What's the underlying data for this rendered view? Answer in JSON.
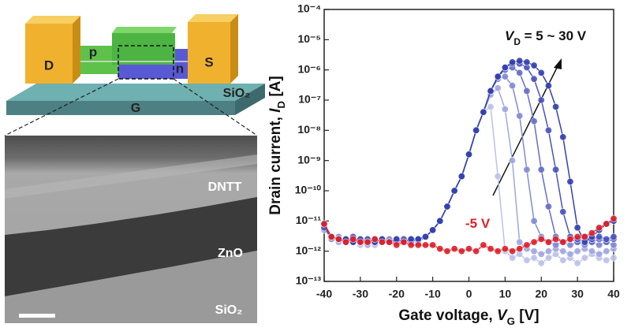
{
  "schematic": {
    "labels": [
      "D",
      "p",
      "n",
      "S",
      "SiO₂",
      "G"
    ]
  },
  "micrograph": {
    "labels": [
      "DNTT",
      "ZnO",
      "SiO₂"
    ]
  },
  "chart_data": {
    "type": "scatter",
    "x_label": [
      "Gate voltage, ",
      "V",
      "G",
      " [V]"
    ],
    "y_label": [
      "Drain current, ",
      "I",
      "D",
      " [A]"
    ],
    "annotations": [
      [
        "V",
        "D",
        " = 5 ~ 30 V"
      ],
      [
        "-5 V"
      ]
    ],
    "log_y": true,
    "xlim": [
      -40,
      40
    ],
    "xticks": [
      -40,
      -30,
      -20,
      -10,
      0,
      10,
      20,
      30,
      40
    ],
    "ylim": [
      1e-13,
      0.0001
    ],
    "yticks": [
      {
        "value": 1e-13,
        "label": "10⁻¹³"
      },
      {
        "value": 1e-12,
        "label": "10⁻¹²"
      },
      {
        "value": 1e-11,
        "label": "10⁻¹¹"
      },
      {
        "value": 1e-10,
        "label": "10⁻¹⁰"
      },
      {
        "value": 1e-09,
        "label": "10⁻⁹"
      },
      {
        "value": 1e-08,
        "label": "10⁻⁸"
      },
      {
        "value": 1e-07,
        "label": "10⁻⁷"
      },
      {
        "value": 1e-06,
        "label": "10⁻⁶"
      },
      {
        "value": 1e-05,
        "label": "10⁻⁵"
      },
      {
        "value": 0.0001,
        "label": "10⁻⁴"
      }
    ],
    "x": [
      -40,
      -38,
      -36,
      -34,
      -32,
      -30,
      -28,
      -26,
      -24,
      -22,
      -20,
      -18,
      -16,
      -14,
      -12,
      -10,
      -8,
      -6,
      -4,
      -2,
      0,
      2,
      4,
      6,
      8,
      10,
      12,
      14,
      16,
      18,
      20,
      22,
      24,
      26,
      28,
      30,
      32,
      34,
      36,
      38,
      40
    ],
    "series": [
      {
        "color": "#bcc1ea",
        "values": [
          6e-12,
          3e-12,
          2.5e-12,
          2e-12,
          2.5e-12,
          1.6e-12,
          2e-12,
          1.6e-12,
          2e-12,
          2.5e-12,
          2e-12,
          2.5e-12,
          2e-12,
          2.5e-12,
          3e-12,
          5e-12,
          1e-11,
          3e-11,
          1e-10,
          3e-10,
          1.6e-09,
          1e-08,
          4e-08,
          6e-08,
          3e-10,
          1e-12,
          6e-13,
          8e-13,
          5e-13,
          6e-13,
          4e-13,
          6e-13,
          8e-13,
          5e-13,
          6e-13,
          4e-13,
          6e-13,
          8e-13,
          6e-13,
          5e-13,
          6e-13
        ]
      },
      {
        "color": "#a0a7e1",
        "values": [
          5e-12,
          3e-12,
          2e-12,
          2.5e-12,
          2e-12,
          2e-12,
          1.6e-12,
          2e-12,
          2.5e-12,
          2e-12,
          2.5e-12,
          2e-12,
          2.5e-12,
          2e-12,
          3e-12,
          5e-12,
          1e-11,
          3e-11,
          1e-10,
          3e-10,
          1.6e-09,
          1e-08,
          4e-08,
          1.5e-07,
          2.5e-07,
          5e-08,
          1e-09,
          2e-12,
          1.2e-12,
          1e-12,
          8e-13,
          1e-12,
          1.2e-12,
          1e-12,
          8e-13,
          1e-12,
          1.2e-12,
          1e-12,
          8e-13,
          1e-12,
          1.2e-12
        ]
      },
      {
        "color": "#8189d6",
        "values": [
          6e-12,
          2.5e-12,
          3e-12,
          2e-12,
          2.5e-12,
          2e-12,
          2.5e-12,
          2e-12,
          2e-12,
          2.5e-12,
          2e-12,
          2e-12,
          2.5e-12,
          2e-12,
          3e-12,
          5e-12,
          1e-11,
          3e-11,
          1e-10,
          3e-10,
          1.6e-09,
          1e-08,
          4e-08,
          2e-07,
          5e-07,
          6e-07,
          3e-07,
          3e-08,
          5e-10,
          1e-11,
          3e-12,
          2e-12,
          1.6e-12,
          2e-12,
          1.6e-12,
          2e-12,
          1.6e-12,
          2e-12,
          1.6e-12,
          2e-12,
          1.6e-12
        ]
      },
      {
        "color": "#646dc9",
        "values": [
          7e-12,
          3e-12,
          2.5e-12,
          2.5e-12,
          2e-12,
          2e-12,
          2e-12,
          2.5e-12,
          2e-12,
          2e-12,
          2.5e-12,
          2e-12,
          2e-12,
          2.5e-12,
          3e-12,
          5e-12,
          1e-11,
          3e-11,
          1e-10,
          3e-10,
          1.6e-09,
          1e-08,
          4e-08,
          2e-07,
          6e-07,
          1e-06,
          1.2e-06,
          8e-07,
          2e-07,
          2e-08,
          5e-10,
          3e-11,
          3e-12,
          2e-12,
          2.5e-12,
          2e-12,
          2.5e-12,
          2e-12,
          2.5e-12,
          2e-12,
          2.5e-12
        ]
      },
      {
        "color": "#4a53bd",
        "values": [
          6e-12,
          3e-12,
          2.5e-12,
          2e-12,
          3e-12,
          2e-12,
          2.5e-12,
          2e-12,
          2.5e-12,
          2e-12,
          2e-12,
          2.5e-12,
          2e-12,
          2.5e-12,
          3e-12,
          5e-12,
          1e-11,
          3e-11,
          1e-10,
          3e-10,
          1.6e-09,
          1e-08,
          4e-08,
          2e-07,
          6e-07,
          1.2e-06,
          1.6e-06,
          1.6e-06,
          1.2e-06,
          5e-07,
          1e-07,
          1e-08,
          5e-10,
          2e-11,
          3e-12,
          2.5e-12,
          3e-12,
          2.5e-12,
          3e-12,
          2.5e-12,
          3e-12
        ]
      },
      {
        "color": "#3440b0",
        "values": [
          8e-12,
          3e-12,
          2.5e-12,
          2.5e-12,
          2e-12,
          2.5e-12,
          2e-12,
          2e-12,
          2.5e-12,
          2e-12,
          2.5e-12,
          2e-12,
          2.5e-12,
          2.5e-12,
          3e-12,
          5e-12,
          1e-11,
          3e-11,
          1e-10,
          3e-10,
          1.6e-09,
          1e-08,
          4e-08,
          2e-07,
          6e-07,
          1.2e-06,
          1.8e-06,
          2e-06,
          1.8e-06,
          1.4e-06,
          8e-07,
          3e-07,
          6e-08,
          6e-09,
          2e-10,
          6e-12,
          2e-12,
          3e-12,
          5e-12,
          8e-12,
          1e-11
        ]
      },
      {
        "color": "#e0202a",
        "values": [
          8e-12,
          3e-12,
          2.5e-12,
          2e-12,
          2.5e-12,
          2e-12,
          2e-12,
          2.5e-12,
          2e-12,
          2e-12,
          1.6e-12,
          2e-12,
          1.6e-12,
          1.6e-12,
          1.6e-12,
          1.6e-12,
          1.2e-12,
          1e-12,
          1.2e-12,
          1e-12,
          1.2e-12,
          1e-12,
          1.6e-12,
          1.2e-12,
          1e-12,
          1.2e-12,
          1e-12,
          1.2e-12,
          1.6e-12,
          2e-12,
          2.5e-12,
          2e-12,
          2.5e-12,
          2e-12,
          2.5e-12,
          3e-12,
          3e-12,
          4e-12,
          6e-12,
          8e-12,
          1.2e-11
        ]
      }
    ]
  }
}
